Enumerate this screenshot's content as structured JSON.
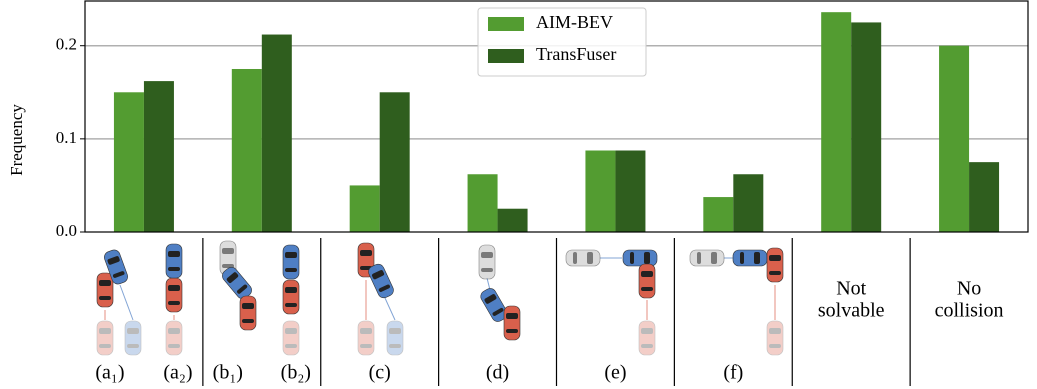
{
  "chart_data": {
    "type": "bar",
    "categories": [
      [
        "(a₁)",
        "(a₂)"
      ],
      [
        "(b₁)",
        "(b₂)"
      ],
      [
        "(c)"
      ],
      [
        "(d)"
      ],
      [
        "(e)"
      ],
      [
        "(f)"
      ],
      [
        "Not",
        "solvable"
      ],
      [
        "No",
        "collision"
      ]
    ],
    "series": [
      {
        "name": "AIM-BEV",
        "color": "#539c31",
        "values": [
          0.15,
          0.175,
          0.05,
          0.062,
          0.0875,
          0.0375,
          0.236,
          0.2
        ]
      },
      {
        "name": "TransFuser",
        "color": "#2f5e1e",
        "values": [
          0.162,
          0.212,
          0.15,
          0.025,
          0.0875,
          0.062,
          0.225,
          0.075
        ]
      }
    ],
    "ylabel": "Frequency",
    "ylim": [
      0,
      0.248
    ],
    "yticks": [
      {
        "value": 0,
        "label": "0.0"
      },
      0.1,
      0.2
    ],
    "grid": true,
    "legend": "top-center"
  }
}
